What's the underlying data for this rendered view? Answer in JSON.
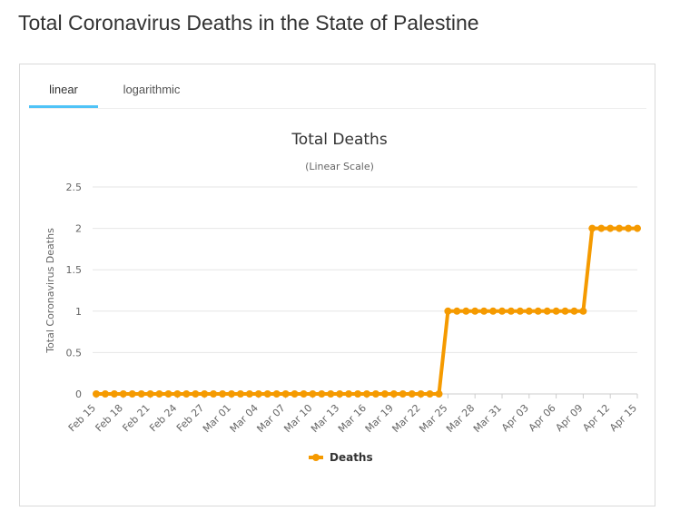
{
  "page": {
    "title": "Total Coronavirus Deaths in the State of Palestine"
  },
  "tabs": [
    {
      "label": "linear",
      "active": true
    },
    {
      "label": "logarithmic",
      "active": false
    }
  ],
  "colors": {
    "series": "#f59a00",
    "tab_active": "#4fc3f7",
    "grid": "#e6e6e6"
  },
  "chart_data": {
    "type": "line",
    "title": "Total Deaths",
    "subtitle": "(Linear Scale)",
    "ylabel": "Total Coronavirus Deaths",
    "xlabel": "",
    "ylim": [
      0,
      2.5
    ],
    "yticks": [
      "0",
      "0.5",
      "1",
      "1.5",
      "2",
      "2.5"
    ],
    "grid": true,
    "legend_position": "bottom",
    "tick_labels": [
      "Feb 15",
      "Feb 18",
      "Feb 21",
      "Feb 24",
      "Feb 27",
      "Mar 01",
      "Mar 04",
      "Mar 07",
      "Mar 10",
      "Mar 13",
      "Mar 16",
      "Mar 19",
      "Mar 22",
      "Mar 25",
      "Mar 28",
      "Mar 31",
      "Apr 03",
      "Apr 06",
      "Apr 09",
      "Apr 12",
      "Apr 15"
    ],
    "categories": [
      "Feb 15",
      "Feb 16",
      "Feb 17",
      "Feb 18",
      "Feb 19",
      "Feb 20",
      "Feb 21",
      "Feb 22",
      "Feb 23",
      "Feb 24",
      "Feb 25",
      "Feb 26",
      "Feb 27",
      "Feb 28",
      "Feb 29",
      "Mar 01",
      "Mar 02",
      "Mar 03",
      "Mar 04",
      "Mar 05",
      "Mar 06",
      "Mar 07",
      "Mar 08",
      "Mar 09",
      "Mar 10",
      "Mar 11",
      "Mar 12",
      "Mar 13",
      "Mar 14",
      "Mar 15",
      "Mar 16",
      "Mar 17",
      "Mar 18",
      "Mar 19",
      "Mar 20",
      "Mar 21",
      "Mar 22",
      "Mar 23",
      "Mar 24",
      "Mar 25",
      "Mar 26",
      "Mar 27",
      "Mar 28",
      "Mar 29",
      "Mar 30",
      "Mar 31",
      "Apr 01",
      "Apr 02",
      "Apr 03",
      "Apr 04",
      "Apr 05",
      "Apr 06",
      "Apr 07",
      "Apr 08",
      "Apr 09",
      "Apr 10",
      "Apr 11",
      "Apr 12",
      "Apr 13",
      "Apr 14",
      "Apr 15"
    ],
    "series": [
      {
        "name": "Deaths",
        "values": [
          0,
          0,
          0,
          0,
          0,
          0,
          0,
          0,
          0,
          0,
          0,
          0,
          0,
          0,
          0,
          0,
          0,
          0,
          0,
          0,
          0,
          0,
          0,
          0,
          0,
          0,
          0,
          0,
          0,
          0,
          0,
          0,
          0,
          0,
          0,
          0,
          0,
          0,
          0,
          1,
          1,
          1,
          1,
          1,
          1,
          1,
          1,
          1,
          1,
          1,
          1,
          1,
          1,
          1,
          1,
          2,
          2,
          2,
          2,
          2,
          2
        ]
      }
    ]
  }
}
